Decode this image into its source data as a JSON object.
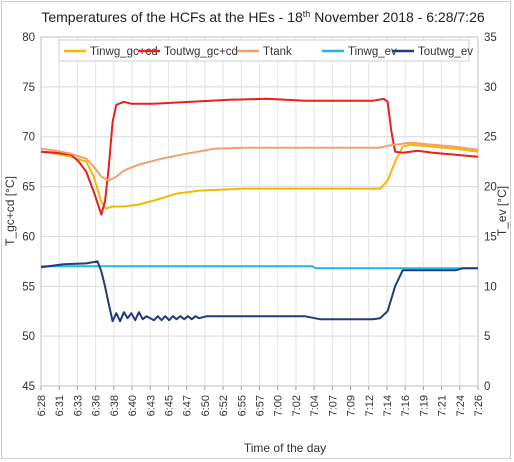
{
  "chart_data": {
    "type": "line",
    "title": {
      "prefix": "Temperatures of the HCFs at the HEs - 18",
      "sup": "th",
      "suffix": " November 2018 - 6:28/7:26"
    },
    "xlabel": "Time of the day",
    "ylabel_left": "T_gc+cd [°C]",
    "ylabel_right": "T_ev [°C]",
    "ylim_left": [
      45,
      80
    ],
    "ylim_right": [
      0,
      35
    ],
    "yticks_left": [
      "45",
      "50",
      "55",
      "60",
      "65",
      "70",
      "75",
      "80"
    ],
    "yticks_right": [
      "0",
      "5",
      "10",
      "15",
      "20",
      "25",
      "30",
      "35"
    ],
    "x_tick_labels": [
      "6:28",
      "6:31",
      "6:33",
      "6:36",
      "6:38",
      "6:40",
      "6:43",
      "6:45",
      "6:47",
      "6:50",
      "6:52",
      "6:55",
      "6:57",
      "7:00",
      "7:02",
      "7:04",
      "7:07",
      "7:09",
      "7:12",
      "7:14",
      "7:16",
      "7:19",
      "7:21",
      "7:24",
      "7:26"
    ],
    "x_unit": "minutes after 6:28",
    "x_range": [
      0,
      58
    ],
    "grid": true,
    "legend_position": "top",
    "series": [
      {
        "name": "Tinwg_gc+cd",
        "axis": "left",
        "color": "#f5b800",
        "points": [
          [
            0,
            68.5
          ],
          [
            2,
            68.3
          ],
          [
            4,
            68.0
          ],
          [
            6,
            67.5
          ],
          [
            7,
            66.0
          ],
          [
            8,
            63.5
          ],
          [
            8.6,
            62.8
          ],
          [
            9.5,
            63.0
          ],
          [
            11,
            63.0
          ],
          [
            13,
            63.2
          ],
          [
            15,
            63.6
          ],
          [
            18,
            64.3
          ],
          [
            21,
            64.6
          ],
          [
            24,
            64.7
          ],
          [
            27,
            64.8
          ],
          [
            36,
            64.8
          ],
          [
            42,
            64.8
          ],
          [
            45,
            64.8
          ],
          [
            46,
            65.6
          ],
          [
            47,
            67.5
          ],
          [
            48,
            69.0
          ],
          [
            49,
            69.2
          ],
          [
            52,
            69.0
          ],
          [
            55,
            68.8
          ],
          [
            58,
            68.5
          ]
        ]
      },
      {
        "name": "Toutwg_gc+cd",
        "axis": "left",
        "color": "#e8201d",
        "points": [
          [
            0,
            68.5
          ],
          [
            2,
            68.4
          ],
          [
            4,
            68.2
          ],
          [
            5,
            67.5
          ],
          [
            6,
            66.5
          ],
          [
            7,
            64.5
          ],
          [
            8,
            62.2
          ],
          [
            8.5,
            63.5
          ],
          [
            9,
            67.0
          ],
          [
            9.5,
            71.5
          ],
          [
            10,
            73.2
          ],
          [
            11,
            73.5
          ],
          [
            12,
            73.3
          ],
          [
            15,
            73.3
          ],
          [
            20,
            73.5
          ],
          [
            25,
            73.7
          ],
          [
            30,
            73.8
          ],
          [
            35,
            73.6
          ],
          [
            40,
            73.6
          ],
          [
            44,
            73.6
          ],
          [
            45.5,
            73.8
          ],
          [
            46,
            73.5
          ],
          [
            46.5,
            70.5
          ],
          [
            47,
            68.5
          ],
          [
            48,
            68.4
          ],
          [
            50,
            68.6
          ],
          [
            52,
            68.4
          ],
          [
            55,
            68.2
          ],
          [
            58,
            68.0
          ]
        ]
      },
      {
        "name": "Ttank",
        "axis": "left",
        "color": "#f0a070",
        "points": [
          [
            0,
            68.8
          ],
          [
            2,
            68.6
          ],
          [
            4,
            68.3
          ],
          [
            6,
            67.8
          ],
          [
            7,
            67.0
          ],
          [
            8,
            66.0
          ],
          [
            9,
            65.6
          ],
          [
            10,
            66.0
          ],
          [
            11,
            66.6
          ],
          [
            13,
            67.2
          ],
          [
            16,
            67.8
          ],
          [
            20,
            68.4
          ],
          [
            23,
            68.8
          ],
          [
            27,
            68.9
          ],
          [
            35,
            68.9
          ],
          [
            45,
            68.9
          ],
          [
            46,
            69.1
          ],
          [
            47,
            69.2
          ],
          [
            49,
            69.4
          ],
          [
            52,
            69.2
          ],
          [
            55,
            69.0
          ],
          [
            58,
            68.7
          ]
        ]
      },
      {
        "name": "Tinwg_ev",
        "axis": "right",
        "color": "#1fb6e8",
        "points": [
          [
            0,
            12.0
          ],
          [
            10,
            12.0
          ],
          [
            20,
            12.0
          ],
          [
            30,
            12.0
          ],
          [
            36,
            12.0
          ],
          [
            36.5,
            11.8
          ],
          [
            40,
            11.8
          ],
          [
            45,
            11.8
          ],
          [
            50,
            11.8
          ],
          [
            58,
            11.8
          ]
        ]
      },
      {
        "name": "Toutwg_ev",
        "axis": "right",
        "color": "#1f3d7a",
        "points": [
          [
            0,
            11.9
          ],
          [
            3,
            12.2
          ],
          [
            6,
            12.3
          ],
          [
            7.5,
            12.5
          ],
          [
            8,
            11.5
          ],
          [
            8.5,
            10.0
          ],
          [
            9,
            8.2
          ],
          [
            9.5,
            6.5
          ],
          [
            10,
            7.3
          ],
          [
            10.5,
            6.5
          ],
          [
            11,
            7.4
          ],
          [
            11.5,
            6.8
          ],
          [
            12,
            7.3
          ],
          [
            12.5,
            6.6
          ],
          [
            13,
            7.4
          ],
          [
            13.5,
            6.7
          ],
          [
            14,
            7.0
          ],
          [
            15,
            6.6
          ],
          [
            15.5,
            7.0
          ],
          [
            16,
            6.6
          ],
          [
            16.5,
            7.0
          ],
          [
            17,
            6.6
          ],
          [
            17.5,
            7.0
          ],
          [
            18,
            6.7
          ],
          [
            18.5,
            7.0
          ],
          [
            19,
            6.7
          ],
          [
            19.5,
            7.0
          ],
          [
            20,
            6.7
          ],
          [
            20.5,
            7.0
          ],
          [
            21,
            6.8
          ],
          [
            22,
            7.0
          ],
          [
            25,
            7.0
          ],
          [
            30,
            7.0
          ],
          [
            35,
            7.0
          ],
          [
            37,
            6.7
          ],
          [
            40,
            6.7
          ],
          [
            44,
            6.7
          ],
          [
            45,
            6.8
          ],
          [
            46,
            7.5
          ],
          [
            47,
            10.0
          ],
          [
            48,
            11.6
          ],
          [
            50,
            11.6
          ],
          [
            53,
            11.6
          ],
          [
            55,
            11.6
          ],
          [
            56,
            11.8
          ],
          [
            58,
            11.8
          ]
        ]
      }
    ]
  }
}
